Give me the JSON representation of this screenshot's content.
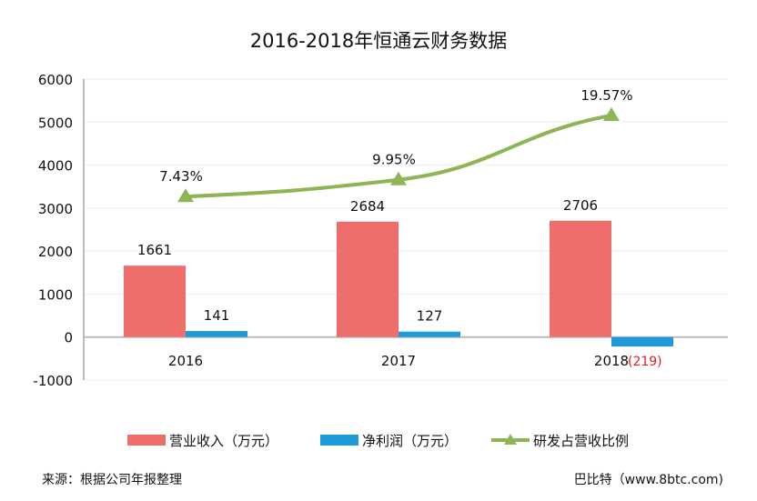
{
  "chart_data": {
    "type": "bar",
    "title": "2016-2018年恒通云财务数据",
    "categories": [
      "2016",
      "2017",
      "2018"
    ],
    "ylim": [
      -1000,
      6000
    ],
    "yticks": [
      6000,
      5000,
      4000,
      3000,
      2000,
      1000,
      0,
      -1000
    ],
    "y2lim": [
      -20,
      25
    ],
    "grid": true,
    "legend_position": "bottom",
    "series": [
      {
        "name": "营业收入（万元）",
        "kind": "bar",
        "color": "#ee6e6b",
        "values": [
          1661,
          2684,
          2706
        ],
        "labels": [
          "1661",
          "2684",
          "2706"
        ]
      },
      {
        "name": "净利润（万元）",
        "kind": "bar",
        "color": "#1e9bd7",
        "values": [
          141,
          127,
          -219
        ],
        "labels": [
          "141",
          "127",
          "(219)"
        ]
      },
      {
        "name": "研发占营收比例",
        "kind": "line",
        "axis": "secondary",
        "marker": "triangle",
        "color": "#8db554",
        "values": [
          7.43,
          9.95,
          19.57
        ],
        "labels": [
          "7.43%",
          "9.95%",
          "19.57%"
        ]
      }
    ],
    "negative_label_color": "#e02020"
  },
  "footer": {
    "source": "来源：根据公司年报整理",
    "credit": "巴比特（www.8btc.com)"
  }
}
